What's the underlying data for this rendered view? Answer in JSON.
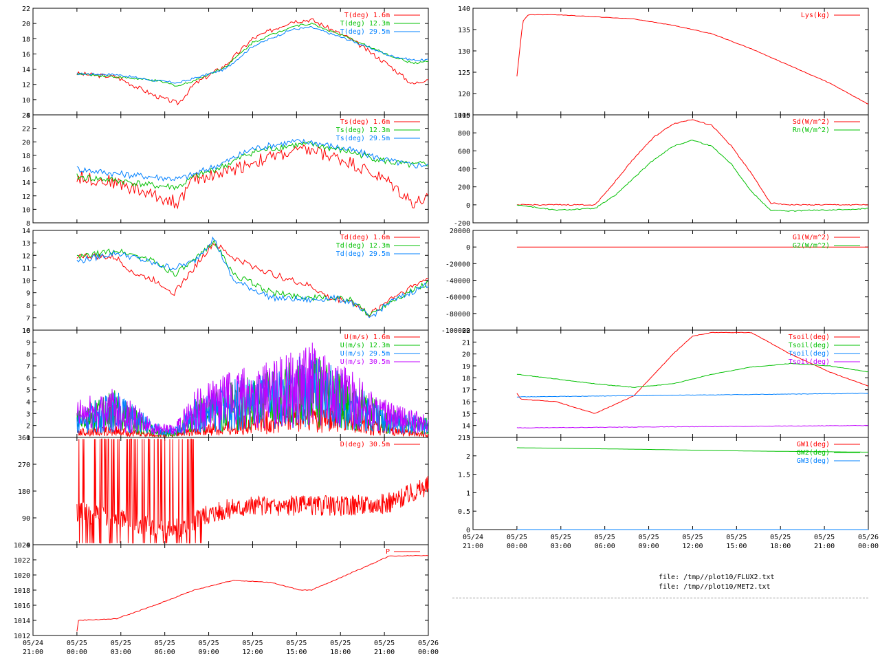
{
  "files": [
    "file: /tmp//plot10/FLUX2.txt",
    "file: /tmp//plot10/MET2.txt"
  ],
  "colors": {
    "red": "#ff0000",
    "green": "#00c000",
    "blue": "#0080ff",
    "purple": "#c000ff"
  },
  "x_ticks": [
    [
      "05/24",
      "21:00"
    ],
    [
      "05/25",
      "00:00"
    ],
    [
      "05/25",
      "03:00"
    ],
    [
      "05/25",
      "06:00"
    ],
    [
      "05/25",
      "09:00"
    ],
    [
      "05/25",
      "12:00"
    ],
    [
      "05/25",
      "15:00"
    ],
    [
      "05/25",
      "18:00"
    ],
    [
      "05/25",
      "21:00"
    ],
    [
      "05/26",
      "00:00"
    ]
  ],
  "chart_data": [
    {
      "id": "T",
      "type": "line",
      "ylim": [
        8,
        22
      ],
      "yticks": [
        "22",
        "20",
        "18",
        "16",
        "14",
        "12",
        "10",
        "8"
      ],
      "series": [
        {
          "name": "T(deg)  1.6m",
          "color": "red",
          "x": [
            0,
            1,
            2,
            2.6,
            3,
            3.8,
            4.5,
            5.5,
            6,
            7,
            8,
            8.6,
            9
          ],
          "y": [
            13.4,
            13,
            10.5,
            9.5,
            12,
            14.5,
            18,
            20.3,
            20.5,
            18,
            14.5,
            12,
            12.8
          ]
        },
        {
          "name": "T(deg) 12.3m",
          "color": "green",
          "x": [
            0,
            1,
            2,
            2.6,
            3,
            3.8,
            4.5,
            5.5,
            6,
            7,
            8,
            8.6,
            9
          ],
          "y": [
            13.4,
            13,
            12.5,
            11.8,
            12.5,
            14.3,
            17.5,
            19.6,
            20,
            18,
            15.8,
            14.8,
            15
          ]
        },
        {
          "name": "T(deg) 29.5m",
          "color": "blue",
          "x": [
            0,
            1,
            2,
            2.6,
            3,
            3.8,
            4.5,
            5.5,
            6,
            7,
            8,
            8.6,
            9
          ],
          "y": [
            13.4,
            13.3,
            12.5,
            12.2,
            12.8,
            14,
            17,
            19.2,
            19.5,
            17.8,
            15.8,
            15.2,
            15.2
          ]
        }
      ]
    },
    {
      "id": "Ts",
      "type": "line",
      "ylim": [
        8,
        24
      ],
      "yticks": [
        "24",
        "22",
        "20",
        "18",
        "16",
        "14",
        "12",
        "10",
        "8"
      ],
      "series": [
        {
          "name": "Ts(deg)  1.6m",
          "color": "red",
          "x": [
            0,
            1,
            2,
            2.6,
            3,
            3.8,
            4.5,
            5.5,
            6,
            7,
            8,
            8.6,
            9
          ],
          "y": [
            14.8,
            14,
            12,
            11,
            14.5,
            15.5,
            17,
            18.5,
            18.8,
            17,
            14,
            11,
            11.5
          ]
        },
        {
          "name": "Ts(deg) 12.3m",
          "color": "green",
          "x": [
            0,
            1,
            2,
            2.6,
            3,
            3.8,
            4.5,
            5.5,
            6,
            7,
            8,
            8.6,
            9
          ],
          "y": [
            14.8,
            14.3,
            13.5,
            13.3,
            14.8,
            16.5,
            18.5,
            19.5,
            19.6,
            18.5,
            17,
            16.5,
            16.8
          ]
        },
        {
          "name": "Ts(deg) 29.5m",
          "color": "blue",
          "x": [
            0,
            1,
            2,
            2.6,
            3,
            3.8,
            4.5,
            5.5,
            6,
            7,
            8,
            8.6,
            9
          ],
          "y": [
            16,
            15.3,
            14.8,
            14.5,
            15.2,
            17,
            19,
            20,
            20,
            18.8,
            17.2,
            16.5,
            16.7
          ]
        }
      ]
    },
    {
      "id": "Td",
      "type": "line",
      "ylim": [
        6,
        14
      ],
      "yticks": [
        "14",
        "13",
        "12",
        "11",
        "10",
        "9",
        "8",
        "7",
        "6"
      ],
      "series": [
        {
          "name": "Td(deg)  1.6m",
          "color": "red",
          "x": [
            0,
            1,
            1.5,
            2,
            2.5,
            3,
            3.5,
            4,
            5,
            6,
            6.5,
            7,
            7.5,
            8,
            9
          ],
          "y": [
            12,
            11.8,
            10.5,
            10,
            9,
            11,
            13,
            11.8,
            10.5,
            9.5,
            8.5,
            8.4,
            7.2,
            8.5,
            10.2
          ]
        },
        {
          "name": "Td(deg) 12.3m",
          "color": "green",
          "x": [
            0,
            1,
            1.5,
            2,
            2.5,
            3,
            3.5,
            4,
            5,
            6,
            6.5,
            7,
            7.5,
            8,
            9
          ],
          "y": [
            11.8,
            12.4,
            12,
            11.5,
            10.5,
            11.5,
            13.2,
            10.5,
            9,
            8.6,
            8.6,
            8.4,
            7.2,
            8.3,
            9.8
          ]
        },
        {
          "name": "Td(deg) 29.5m",
          "color": "blue",
          "x": [
            0,
            1,
            1.5,
            2,
            2.5,
            3,
            3.5,
            4,
            5,
            6,
            6.5,
            7,
            7.5,
            8,
            9
          ],
          "y": [
            11.5,
            12.2,
            11.8,
            11.3,
            11,
            11.5,
            13.4,
            10,
            8.6,
            8.4,
            8.6,
            8.3,
            7,
            8.2,
            9.7
          ]
        }
      ]
    },
    {
      "id": "U",
      "type": "line",
      "ylim": [
        0,
        10
      ],
      "yticks": [
        "10",
        "9",
        "8",
        "7",
        "6",
        "5",
        "4",
        "3",
        "2",
        "1"
      ],
      "series": [
        {
          "name": "U(m/s)  1.6m",
          "color": "red",
          "x": [
            0,
            1,
            2,
            2.5,
            3,
            4,
            5,
            6,
            7,
            8,
            9
          ],
          "y": [
            0.5,
            0.6,
            0.2,
            0.3,
            0.5,
            1,
            1.5,
            2,
            1.5,
            0.6,
            0.3
          ]
        },
        {
          "name": "U(m/s) 12.3m",
          "color": "green",
          "x": [
            0,
            1,
            2,
            2.5,
            3,
            4,
            5,
            6,
            7,
            8,
            9
          ],
          "y": [
            1.5,
            2.5,
            0.5,
            0.3,
            1.8,
            3,
            3.5,
            4.5,
            3,
            1.5,
            1
          ]
        },
        {
          "name": "U(m/s) 29.5m",
          "color": "blue",
          "x": [
            0,
            1,
            2,
            2.5,
            3,
            4,
            5,
            6,
            7,
            8,
            9
          ],
          "y": [
            1.5,
            2.5,
            0.8,
            0.5,
            2,
            3,
            3.5,
            4.5,
            3,
            1.5,
            1
          ]
        },
        {
          "name": "U(m/s) 30.5m",
          "color": "purple",
          "x": [
            0,
            1,
            2,
            2.5,
            3,
            4,
            5,
            6,
            7,
            8,
            9
          ],
          "y": [
            2,
            2.6,
            0.8,
            0.6,
            2.5,
            3.5,
            4,
            5,
            3.5,
            1.8,
            1.2
          ]
        }
      ]
    },
    {
      "id": "D",
      "type": "line",
      "ylim": [
        0,
        360
      ],
      "yticks": [
        "360",
        "270",
        "180",
        "90",
        "0"
      ],
      "series": [
        {
          "name": "D(deg)  30.5m",
          "color": "red",
          "x": [
            0,
            0.5,
            1,
            2,
            2.8,
            3.2,
            4,
            5,
            6,
            7,
            8,
            9
          ],
          "y": [
            110,
            100,
            90,
            60,
            60,
            100,
            125,
            130,
            130,
            130,
            140,
            200
          ]
        }
      ]
    },
    {
      "id": "P",
      "type": "line",
      "ylim": [
        1012,
        1024
      ],
      "yticks": [
        "1024",
        "1022",
        "1020",
        "1018",
        "1016",
        "1014",
        "1012"
      ],
      "series": [
        {
          "name": "P",
          "color": "red",
          "x": [
            0,
            0.01,
            1,
            2,
            3,
            4,
            5,
            5.7,
            6,
            7,
            8,
            9
          ],
          "y": [
            1012.5,
            1014,
            1014.2,
            1016,
            1018,
            1019.3,
            1019,
            1018,
            1018,
            1020.2,
            1022.5,
            1022.6
          ]
        }
      ]
    },
    {
      "id": "Lys",
      "type": "line",
      "ylim": [
        115,
        140
      ],
      "yticks": [
        "140",
        "135",
        "130",
        "125",
        "120",
        "115"
      ],
      "series": [
        {
          "name": "Lys(kg)",
          "color": "red",
          "x": [
            0,
            0.15,
            0.3,
            1,
            2,
            3,
            4,
            5,
            6,
            7,
            8,
            9
          ],
          "y": [
            124,
            137,
            138.5,
            138.5,
            138,
            137.5,
            136,
            134,
            130.5,
            126.5,
            122.5,
            117.5
          ]
        }
      ]
    },
    {
      "id": "Sd",
      "type": "line",
      "ylim": [
        -200,
        1000
      ],
      "yticks": [
        "1000",
        "800",
        "600",
        "400",
        "200",
        "0",
        "-200"
      ],
      "series": [
        {
          "name": "Sd(W/m^2)",
          "color": "red",
          "x": [
            0,
            1,
            1.5,
            2,
            2.5,
            3,
            3.5,
            4,
            4.5,
            5,
            5.5,
            6,
            6.5,
            7,
            7.5,
            8,
            9
          ],
          "y": [
            0,
            0,
            0,
            0,
            250,
            520,
            750,
            900,
            950,
            880,
            650,
            350,
            20,
            0,
            0,
            0,
            0
          ]
        },
        {
          "name": "Rn(W/m^2)",
          "color": "green",
          "x": [
            0,
            1,
            1.5,
            2,
            2.5,
            3,
            3.5,
            4,
            4.5,
            5,
            5.5,
            6,
            6.5,
            7,
            7.5,
            8,
            9
          ],
          "y": [
            0,
            -60,
            -50,
            -40,
            100,
            300,
            500,
            650,
            720,
            650,
            450,
            150,
            -60,
            -70,
            -60,
            -60,
            -40
          ]
        }
      ]
    },
    {
      "id": "G",
      "type": "line",
      "ylim": [
        -100000,
        20000
      ],
      "yticks": [
        "20000",
        "0",
        "-20000",
        "-40000",
        "-60000",
        "-80000",
        "-100000"
      ],
      "series": [
        {
          "name": "G1(W/m^2)",
          "color": "red",
          "x": [
            0,
            9
          ],
          "y": [
            0,
            0
          ]
        },
        {
          "name": "G2(W/m^2)",
          "color": "green",
          "x": [
            0,
            9
          ],
          "y": [
            -100000,
            -100000
          ]
        }
      ]
    },
    {
      "id": "Tsoil",
      "type": "line",
      "ylim": [
        13,
        22
      ],
      "yticks": [
        "22",
        "21",
        "20",
        "19",
        "18",
        "17",
        "16",
        "15",
        "14",
        "13"
      ],
      "series": [
        {
          "name": "Tsoil(deg)",
          "color": "red",
          "x": [
            0,
            0.1,
            1,
            2,
            3,
            4,
            4.5,
            5,
            6,
            7,
            8,
            9
          ],
          "y": [
            16.7,
            16.2,
            16,
            15,
            16.5,
            20,
            21.5,
            21.8,
            21.8,
            20,
            18.5,
            17.3
          ]
        },
        {
          "name": "Tsoil(deg)",
          "color": "green",
          "x": [
            0,
            1,
            2,
            3,
            4,
            5,
            6,
            7,
            8,
            9
          ],
          "y": [
            18.3,
            17.9,
            17.5,
            17.2,
            17.5,
            18.3,
            18.9,
            19.2,
            19,
            18.5
          ]
        },
        {
          "name": "Tsoil(deg)",
          "color": "blue",
          "x": [
            0,
            9
          ],
          "y": [
            16.4,
            16.7
          ]
        },
        {
          "name": "Tsoil(deg)",
          "color": "purple",
          "x": [
            0,
            9
          ],
          "y": [
            13.8,
            14
          ]
        }
      ]
    },
    {
      "id": "GW",
      "type": "line",
      "ylim": [
        0,
        2.5
      ],
      "yticks": [
        "2.5",
        "2",
        "1.5",
        "1",
        "0.5",
        "0"
      ],
      "series": [
        {
          "name": "GW1(deg)",
          "color": "red",
          "x": [],
          "y": []
        },
        {
          "name": "GW2(deg)",
          "color": "green",
          "x": [
            0,
            3,
            6,
            9
          ],
          "y": [
            2.22,
            2.18,
            2.13,
            2.1
          ]
        },
        {
          "name": "GW3(deg)",
          "color": "blue",
          "x": [
            0,
            9
          ],
          "y": [
            0,
            0
          ]
        }
      ]
    }
  ]
}
